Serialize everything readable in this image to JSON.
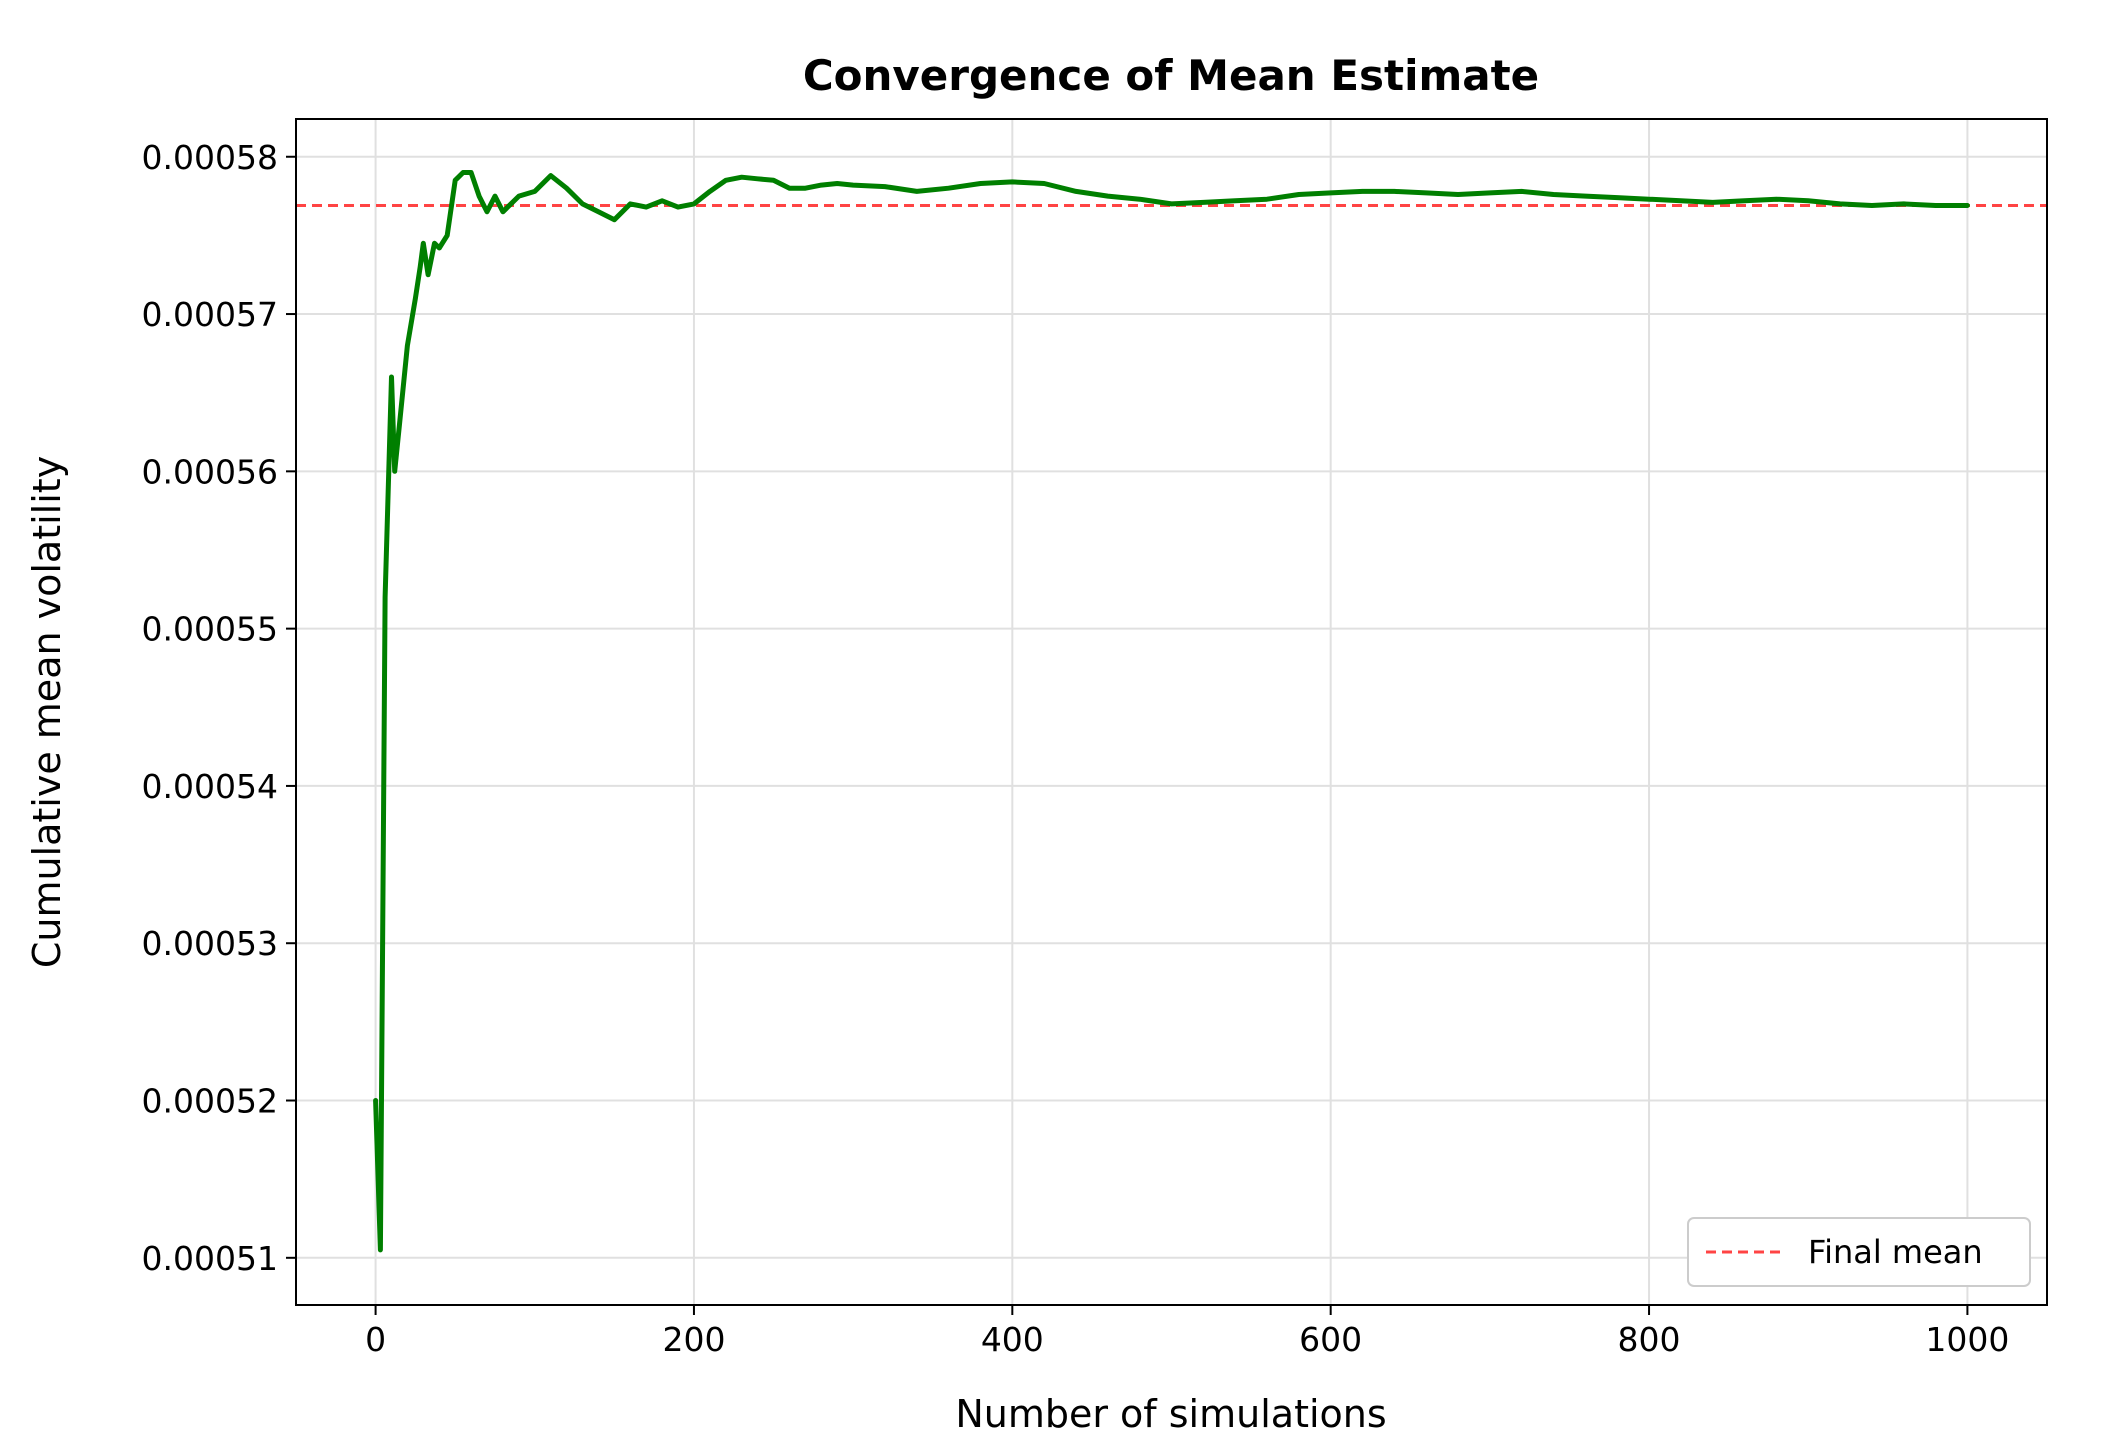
{
  "chart_data": {
    "type": "line",
    "title": "Convergence of Mean Estimate",
    "xlabel": "Number of simulations",
    "ylabel": "Cumulative mean volatility",
    "xlim": [
      -50,
      1050
    ],
    "ylim": [
      0.000507,
      0.0005824
    ],
    "xticks": [
      0,
      200,
      400,
      600,
      800,
      1000
    ],
    "xtick_labels": [
      "0",
      "200",
      "400",
      "600",
      "800",
      "1000"
    ],
    "yticks": [
      0.00051,
      0.00052,
      0.00053,
      0.00054,
      0.00055,
      0.00056,
      0.00057,
      0.00058
    ],
    "ytick_labels": [
      "0.00051",
      "0.00052",
      "0.00053",
      "0.00054",
      "0.00055",
      "0.00056",
      "0.00057",
      "0.00058"
    ],
    "grid": true,
    "legend_position": "lower-right",
    "series": [
      {
        "color": "#007f00",
        "style": "solid",
        "x": [
          0,
          3,
          6,
          10,
          12,
          15,
          20,
          25,
          28,
          30,
          33,
          37,
          40,
          45,
          50,
          55,
          60,
          65,
          70,
          75,
          80,
          90,
          100,
          110,
          120,
          130,
          140,
          150,
          160,
          170,
          180,
          190,
          200,
          210,
          220,
          230,
          240,
          250,
          260,
          270,
          280,
          290,
          300,
          320,
          340,
          360,
          380,
          400,
          420,
          440,
          460,
          480,
          500,
          520,
          540,
          560,
          580,
          600,
          620,
          640,
          660,
          680,
          700,
          720,
          740,
          760,
          780,
          800,
          820,
          840,
          860,
          880,
          900,
          920,
          940,
          960,
          980,
          1000
        ],
        "y": [
          0.00052,
          0.0005105,
          0.000552,
          0.000566,
          0.00056,
          0.000563,
          0.000568,
          0.000571,
          0.000573,
          0.0005745,
          0.0005725,
          0.0005745,
          0.0005742,
          0.000575,
          0.0005785,
          0.000579,
          0.000579,
          0.0005775,
          0.0005765,
          0.0005775,
          0.0005765,
          0.0005775,
          0.0005778,
          0.0005788,
          0.000578,
          0.000577,
          0.0005765,
          0.000576,
          0.000577,
          0.0005768,
          0.0005772,
          0.0005768,
          0.000577,
          0.0005778,
          0.0005785,
          0.0005787,
          0.0005786,
          0.0005785,
          0.000578,
          0.000578,
          0.0005782,
          0.0005783,
          0.0005782,
          0.0005781,
          0.0005778,
          0.000578,
          0.0005783,
          0.0005784,
          0.0005783,
          0.0005778,
          0.0005775,
          0.0005773,
          0.000577,
          0.0005771,
          0.0005772,
          0.0005773,
          0.0005776,
          0.0005777,
          0.0005778,
          0.0005778,
          0.0005777,
          0.0005776,
          0.0005777,
          0.0005778,
          0.0005776,
          0.0005775,
          0.0005774,
          0.0005773,
          0.0005772,
          0.0005771,
          0.0005772,
          0.0005773,
          0.0005772,
          0.000577,
          0.0005769,
          0.000577,
          0.0005769,
          0.0005769
        ]
      },
      {
        "name": "Final mean",
        "color": "#ff4444",
        "style": "dashed",
        "y_constant": 0.0005769
      }
    ]
  }
}
